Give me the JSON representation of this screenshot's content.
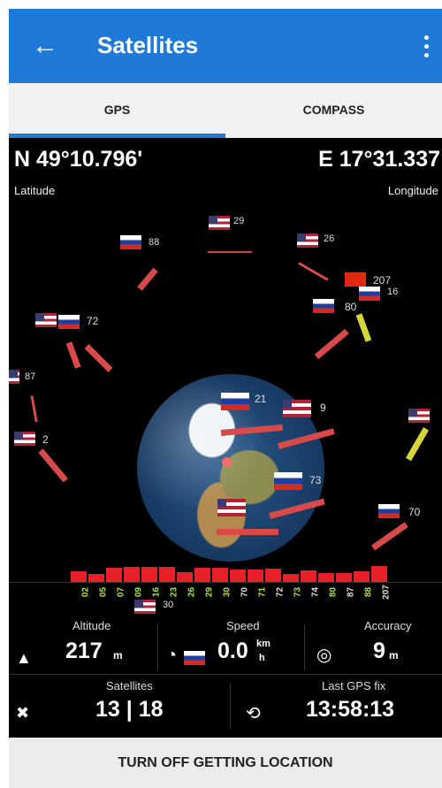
{
  "app_bar": {
    "title": "Satellites",
    "back_icon": "arrow-left-icon",
    "menu_icon": "more-vertical-icon"
  },
  "tabs": [
    {
      "label": "GPS",
      "active": true
    },
    {
      "label": "COMPASS",
      "active": false
    }
  ],
  "coordinates": {
    "latitude": "N 49°10.796'",
    "latitude_label": "Latitude",
    "longitude": "E 17°31.337",
    "longitude_label": "Longitude"
  },
  "satellites_sky": [
    {
      "id": "29",
      "flag": "us"
    },
    {
      "id": "88",
      "flag": "ru"
    },
    {
      "id": "26",
      "flag": "us"
    },
    {
      "id": "207",
      "flag": "cn"
    },
    {
      "id": "16",
      "flag": "ru"
    },
    {
      "id": "80",
      "flag": "ru"
    },
    {
      "id": "72",
      "flag": "us"
    },
    {
      "id": "87",
      "flag": "us"
    },
    {
      "id": "2",
      "flag": "us"
    },
    {
      "id": "21",
      "flag": "ru"
    },
    {
      "id": "9",
      "flag": "us"
    },
    {
      "id": "73",
      "flag": "ru"
    },
    {
      "id": "70",
      "flag": "ru"
    },
    {
      "id": "30",
      "flag": "us"
    }
  ],
  "signal_prns": [
    "02",
    "05",
    "07",
    "09",
    "16",
    "23",
    "26",
    "29",
    "30",
    "70",
    "71",
    "72",
    "73",
    "74",
    "80",
    "87",
    "88",
    "207"
  ],
  "stats": {
    "altitude_label": "Altitude",
    "altitude_value": "217",
    "altitude_unit": "m",
    "speed_label": "Speed",
    "speed_value": "0.0",
    "speed_unit_top": "km",
    "speed_unit_bottom": "h",
    "accuracy_label": "Accuracy",
    "accuracy_value": "9",
    "accuracy_unit": "m",
    "satellites_label": "Satellites",
    "satellites_value": "13 | 18",
    "last_fix_label": "Last GPS fix",
    "last_fix_value": "13:58:13"
  },
  "bottom_button": {
    "label": "TURN OFF GETTING LOCATION"
  },
  "colors": {
    "accent": "#1e7ad6",
    "signal_bar": "#e8202a",
    "prn_label": "#aee33e"
  }
}
